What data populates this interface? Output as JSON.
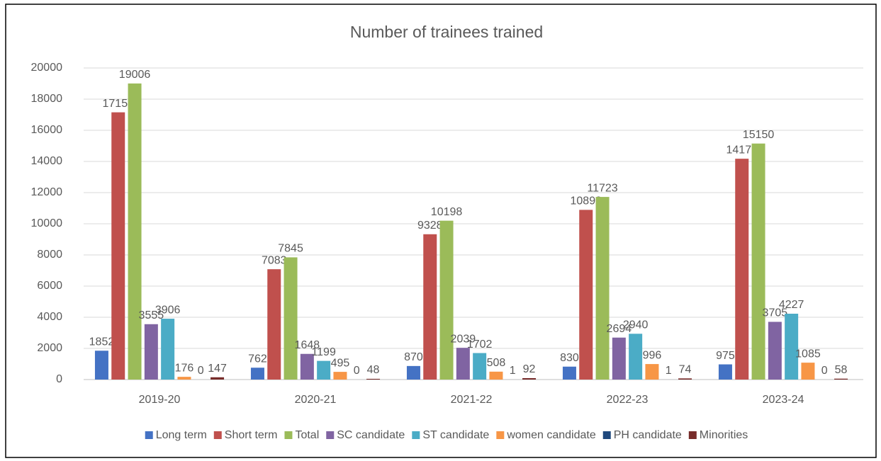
{
  "chart_data": {
    "type": "bar",
    "title": "Number of trainees trained",
    "categories": [
      "2019-20",
      "2020-21",
      "2021-22",
      "2022-23",
      "2023-24"
    ],
    "series": [
      {
        "name": "Long term",
        "color": "#4472c4",
        "values": [
          1852,
          762,
          870,
          830,
          975
        ]
      },
      {
        "name": "Short term",
        "color": "#c0504d",
        "values": [
          17154,
          7083,
          9328,
          10893,
          14175
        ]
      },
      {
        "name": "Total",
        "color": "#9bbb59",
        "values": [
          19006,
          7845,
          10198,
          11723,
          15150
        ]
      },
      {
        "name": "SC candidate",
        "color": "#8064a2",
        "values": [
          3555,
          1648,
          2039,
          2694,
          3705
        ]
      },
      {
        "name": "ST candidate",
        "color": "#4bacc6",
        "values": [
          3906,
          1199,
          1702,
          2940,
          4227
        ]
      },
      {
        "name": "women candidate",
        "color": "#f79646",
        "values": [
          176,
          495,
          508,
          996,
          1085
        ]
      },
      {
        "name": "PH candidate",
        "color": "#1f497d",
        "values": [
          0,
          0,
          1,
          1,
          0
        ]
      },
      {
        "name": "Minorities",
        "color": "#772c2a",
        "values": [
          147,
          48,
          92,
          74,
          58
        ]
      }
    ],
    "ylim": [
      0,
      20000
    ],
    "yticks": [
      0,
      2000,
      4000,
      6000,
      8000,
      10000,
      12000,
      14000,
      16000,
      18000,
      20000
    ],
    "grid": true,
    "legend": "bottom"
  }
}
